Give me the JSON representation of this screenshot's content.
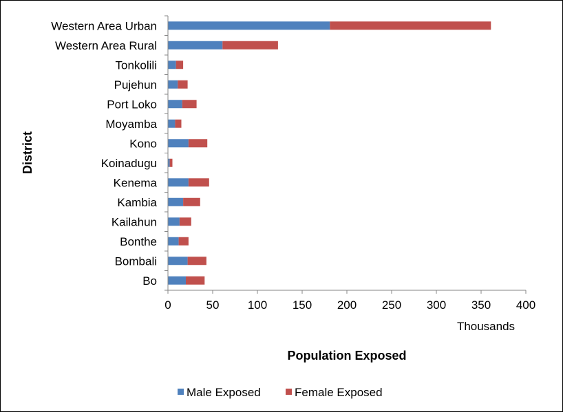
{
  "chart_data": {
    "type": "bar",
    "orientation": "horizontal",
    "stacked": true,
    "title": "",
    "xlabel": "Population Exposed",
    "x_units_label": "Thousands",
    "ylabel": "District",
    "xlim": [
      0,
      400
    ],
    "x_ticks": [
      0,
      50,
      100,
      150,
      200,
      250,
      300,
      350,
      400
    ],
    "grid": false,
    "legend_position": "bottom",
    "categories": [
      "Western Area Urban",
      "Western Area Rural",
      "Tonkolili",
      "Pujehun",
      "Port Loko",
      "Moyamba",
      "Kono",
      "Koinadugu",
      "Kenema",
      "Kambia",
      "Kailahun",
      "Bonthe",
      "Bombali",
      "Bo"
    ],
    "series": [
      {
        "name": "Male Exposed",
        "color": "#4f81bd",
        "values": [
          181,
          61,
          9,
          11,
          16,
          8,
          23,
          2,
          23,
          17,
          13,
          12,
          22,
          20
        ]
      },
      {
        "name": "Female Exposed",
        "color": "#c0504d",
        "values": [
          180,
          62,
          8,
          11,
          16,
          7,
          21,
          3,
          23,
          19,
          13,
          11,
          21,
          21
        ]
      }
    ]
  }
}
